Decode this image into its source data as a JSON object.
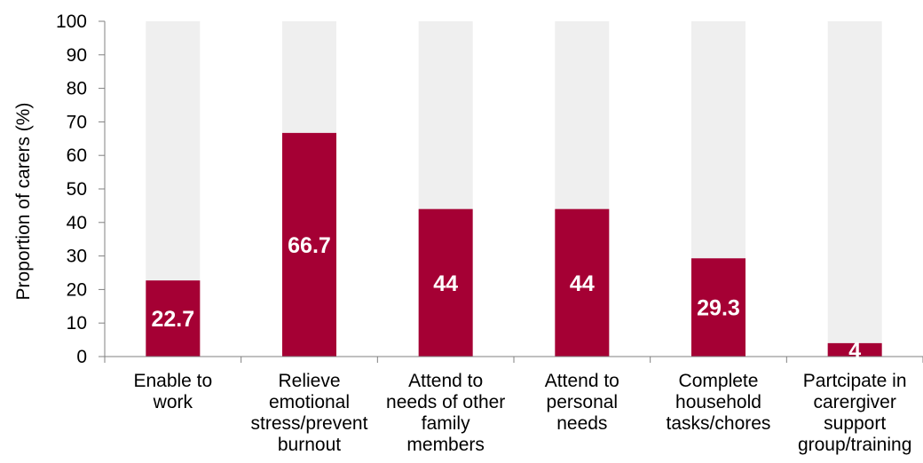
{
  "chart_data": {
    "type": "bar",
    "ylabel": "Proportion of carers (%)",
    "xlabel": "",
    "ylim": [
      0,
      100
    ],
    "yticks": [
      0,
      10,
      20,
      30,
      40,
      50,
      60,
      70,
      80,
      90,
      100
    ],
    "categories": [
      [
        "Enable to",
        "work"
      ],
      [
        "Relieve",
        "emotional",
        "stress/prevent",
        "burnout"
      ],
      [
        "Attend to",
        "needs of other",
        "family",
        "members"
      ],
      [
        "Attend to",
        "personal",
        "needs"
      ],
      [
        "Complete",
        "household",
        "tasks/chores"
      ],
      [
        "Partcipate in",
        "carergiver",
        "support",
        "group/training"
      ]
    ],
    "series": [
      {
        "values": [
          22.7,
          66.7,
          44,
          44,
          29.3,
          4
        ],
        "labels": [
          "22.7",
          "66.7",
          "44",
          "44",
          "29.3",
          "4"
        ],
        "color": "#a50034"
      }
    ],
    "background_bar": {
      "value": 100,
      "color": "#efefef"
    },
    "grid": false,
    "legend": "none"
  }
}
